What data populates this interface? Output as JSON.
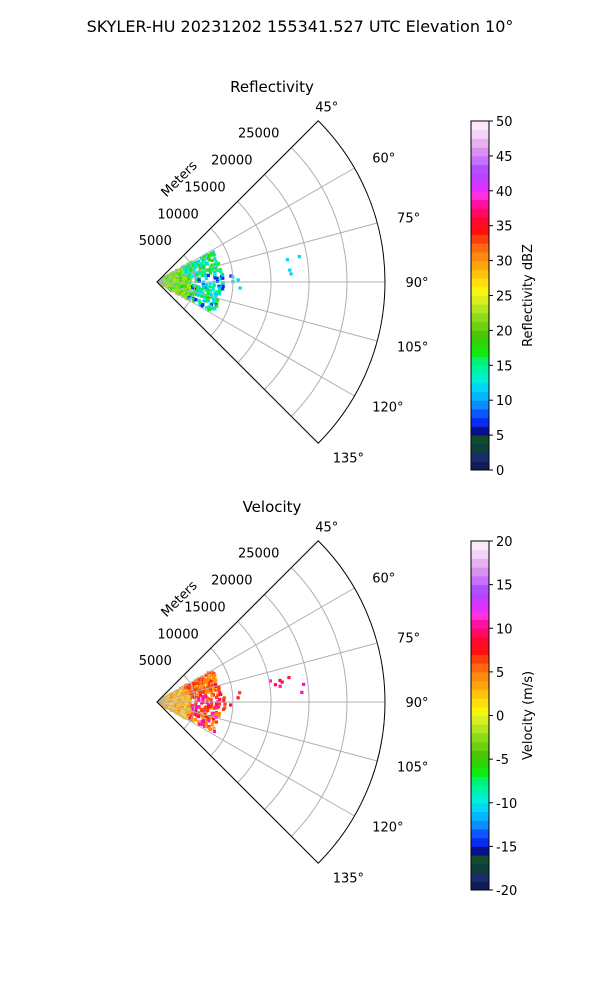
{
  "figure": {
    "title": "SKYLER-HU  20231202  155341.527 UTC Elevation 10°"
  },
  "chart_data": [
    {
      "type": "heatmap",
      "subtype": "radar-ppi-sector",
      "title": "Reflectivity",
      "radial_axis_label": "Meters",
      "range_ticks": [
        5000,
        10000,
        15000,
        20000,
        25000
      ],
      "range_max": 30000,
      "azimuth_ticks": [
        "45°",
        "60°",
        "75°",
        "90°",
        "105°",
        "120°",
        "135°"
      ],
      "azimuth_range_deg": [
        45,
        135
      ],
      "grid": true,
      "colorbar": {
        "label": "Reflectivity dBZ",
        "min": 0,
        "max": 50,
        "ticks": [
          0,
          5,
          10,
          15,
          20,
          25,
          30,
          35,
          40,
          45,
          50
        ],
        "colors": [
          "#0f1e58",
          "#1b2c6e",
          "#0e3f3a",
          "#124a2e",
          "#06108c",
          "#0a2cf2",
          "#0c56ff",
          "#0b8dff",
          "#02b7ff",
          "#00d9f3",
          "#00f0d6",
          "#00f4a6",
          "#00f470",
          "#10ec10",
          "#2cd60a",
          "#4ac808",
          "#6cd210",
          "#8edc18",
          "#b2e620",
          "#d8ef1c",
          "#f6f510",
          "#ffe00a",
          "#ffc40a",
          "#ffa40a",
          "#ff8a10",
          "#ff6a10",
          "#ff3e10",
          "#ff1010",
          "#ff0830",
          "#ff0a60",
          "#ff10a0",
          "#ff30e0",
          "#e030ff",
          "#bf40ff",
          "#b050ff",
          "#c870ff",
          "#d890f0",
          "#e8b0f0",
          "#f4d4f8",
          "#fbe8fb"
        ]
      },
      "echo_color_samples": [
        "#8ede1a",
        "#b9e41e",
        "#2cd80c",
        "#10ef2a",
        "#00f0c4",
        "#00d8f0",
        "#0a2cf0"
      ]
    },
    {
      "type": "heatmap",
      "subtype": "radar-ppi-sector",
      "title": "Velocity",
      "radial_axis_label": "Meters",
      "range_ticks": [
        5000,
        10000,
        15000,
        20000,
        25000
      ],
      "range_max": 30000,
      "azimuth_ticks": [
        "45°",
        "60°",
        "75°",
        "90°",
        "105°",
        "120°",
        "135°"
      ],
      "azimuth_range_deg": [
        45,
        135
      ],
      "grid": true,
      "colorbar": {
        "label": "Velocity (m/s)",
        "min": -20,
        "max": 20,
        "ticks": [
          -20,
          -15,
          -10,
          -5,
          0,
          5,
          10,
          15,
          20
        ],
        "colors": [
          "#0f1e58",
          "#1b2c6e",
          "#0e3f3a",
          "#124a2e",
          "#06108c",
          "#0a2cf2",
          "#0c56ff",
          "#0b8dff",
          "#02b7ff",
          "#00d9f3",
          "#00f0d6",
          "#00f4a6",
          "#00f470",
          "#10ec10",
          "#2cd60a",
          "#4ac808",
          "#6cd210",
          "#8edc18",
          "#b2e620",
          "#d8ef1c",
          "#f6f510",
          "#ffe00a",
          "#ffc40a",
          "#ffa40a",
          "#ff8a10",
          "#ff6a10",
          "#ff3e10",
          "#ff1010",
          "#ff0830",
          "#ff0a60",
          "#ff10a0",
          "#ff30e0",
          "#e030ff",
          "#bf40ff",
          "#b050ff",
          "#c870ff",
          "#d890f0",
          "#e8b0f0",
          "#f4d4f8",
          "#fbe8fb"
        ]
      },
      "echo_color_samples": [
        "#f0c848",
        "#e9d36a",
        "#ffa40a",
        "#ff8a10",
        "#ff3e10",
        "#ff1040",
        "#ff10c8"
      ]
    }
  ]
}
